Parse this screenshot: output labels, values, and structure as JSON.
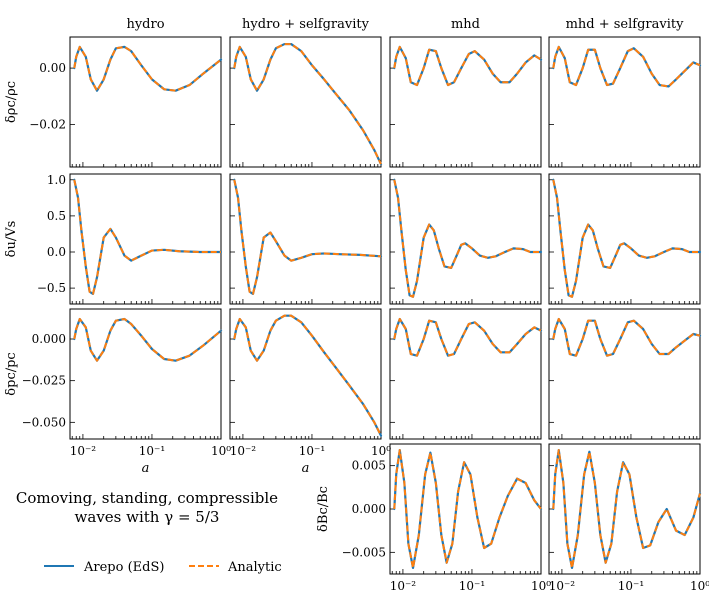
{
  "figure": {
    "note_line1": "Comoving, standing, compressible",
    "note_line2": "waves with γ = 5/3",
    "legend": [
      {
        "label": "Arepo (EdS)",
        "color": "#1f77b4",
        "style": "solid"
      },
      {
        "label": "Analytic",
        "color": "#ff7f0e",
        "style": "dashed"
      }
    ]
  },
  "chart_data": {
    "type": "line",
    "x_scale": "log",
    "xlim": [
      0.0065,
      1.0
    ],
    "xlabel": "a",
    "x_ticks": [
      {
        "v": 0.01,
        "label": "10⁻²"
      },
      {
        "v": 0.1,
        "label": "10⁻¹"
      },
      {
        "v": 1.0,
        "label": "10⁰"
      }
    ],
    "columns": [
      "hydro",
      "hydro + selfgravity",
      "mhd",
      "mhd + selfgravity"
    ],
    "rows": [
      {
        "ylabel": "δρc/ρc",
        "ylim": [
          -0.035,
          0.011
        ],
        "yticks": [
          {
            "v": 0.0,
            "label": "0.00"
          },
          {
            "v": -0.02,
            "label": "−0.02"
          }
        ],
        "series": [
          {
            "x": [
              0.0075,
              0.008,
              0.009,
              0.011,
              0.013,
              0.016,
              0.02,
              0.025,
              0.03,
              0.04,
              0.05,
              0.07,
              0.1,
              0.15,
              0.22,
              0.35,
              0.55,
              1.0
            ],
            "y": [
              0.0,
              0.004,
              0.0075,
              0.004,
              -0.004,
              -0.008,
              -0.004,
              0.003,
              0.007,
              0.0075,
              0.006,
              0.001,
              -0.004,
              -0.0075,
              -0.008,
              -0.006,
              -0.002,
              0.003
            ]
          },
          {
            "x": [
              0.0075,
              0.008,
              0.009,
              0.011,
              0.013,
              0.016,
              0.02,
              0.025,
              0.03,
              0.04,
              0.05,
              0.07,
              0.1,
              0.15,
              0.22,
              0.35,
              0.55,
              0.8,
              1.0
            ],
            "y": [
              0.0,
              0.004,
              0.0075,
              0.004,
              -0.004,
              -0.008,
              -0.004,
              0.003,
              0.007,
              0.0085,
              0.0085,
              0.006,
              0.001,
              -0.004,
              -0.009,
              -0.015,
              -0.022,
              -0.029,
              -0.034
            ]
          },
          {
            "x": [
              0.0075,
              0.008,
              0.009,
              0.011,
              0.013,
              0.016,
              0.02,
              0.024,
              0.03,
              0.036,
              0.045,
              0.055,
              0.07,
              0.09,
              0.11,
              0.15,
              0.2,
              0.26,
              0.35,
              0.45,
              0.6,
              0.8,
              1.0
            ],
            "y": [
              0.0,
              0.004,
              0.0075,
              0.0035,
              -0.005,
              -0.006,
              0.0,
              0.0065,
              0.006,
              0.0,
              -0.006,
              -0.005,
              0.0,
              0.005,
              0.006,
              0.003,
              -0.002,
              -0.005,
              -0.005,
              -0.002,
              0.002,
              0.0045,
              0.003
            ]
          },
          {
            "x": [
              0.0075,
              0.008,
              0.009,
              0.011,
              0.013,
              0.016,
              0.02,
              0.024,
              0.03,
              0.036,
              0.045,
              0.055,
              0.07,
              0.09,
              0.11,
              0.15,
              0.2,
              0.26,
              0.35,
              0.45,
              0.6,
              0.8,
              1.0
            ],
            "y": [
              0.0,
              0.004,
              0.0075,
              0.0035,
              -0.005,
              -0.006,
              0.0,
              0.0065,
              0.0065,
              0.0,
              -0.006,
              -0.0055,
              0.0,
              0.006,
              0.007,
              0.004,
              -0.002,
              -0.006,
              -0.0065,
              -0.004,
              -0.001,
              0.002,
              0.001
            ]
          }
        ]
      },
      {
        "ylabel": "δu/Vs",
        "ylim": [
          -0.72,
          1.08
        ],
        "yticks": [
          {
            "v": 1.0,
            "label": "1.0"
          },
          {
            "v": 0.5,
            "label": "0.5"
          },
          {
            "v": 0.0,
            "label": "0.0"
          },
          {
            "v": -0.5,
            "label": "−0.5"
          }
        ],
        "series": [
          {
            "x": [
              0.0075,
              0.0085,
              0.0095,
              0.011,
              0.0125,
              0.014,
              0.016,
              0.02,
              0.025,
              0.03,
              0.04,
              0.05,
              0.07,
              0.1,
              0.15,
              0.25,
              0.5,
              1.0
            ],
            "y": [
              1.0,
              0.75,
              0.3,
              -0.2,
              -0.55,
              -0.58,
              -0.35,
              0.2,
              0.32,
              0.2,
              -0.05,
              -0.12,
              -0.05,
              0.02,
              0.03,
              0.01,
              0.0,
              0.0
            ]
          },
          {
            "x": [
              0.0075,
              0.0085,
              0.0095,
              0.011,
              0.0125,
              0.014,
              0.016,
              0.02,
              0.025,
              0.03,
              0.04,
              0.05,
              0.07,
              0.1,
              0.15,
              0.25,
              0.5,
              1.0
            ],
            "y": [
              1.0,
              0.75,
              0.3,
              -0.2,
              -0.55,
              -0.58,
              -0.35,
              0.2,
              0.27,
              0.15,
              -0.05,
              -0.12,
              -0.08,
              -0.03,
              -0.02,
              -0.03,
              -0.04,
              -0.06
            ]
          },
          {
            "x": [
              0.0075,
              0.0085,
              0.0095,
              0.011,
              0.0125,
              0.014,
              0.016,
              0.02,
              0.024,
              0.028,
              0.033,
              0.04,
              0.05,
              0.06,
              0.07,
              0.08,
              0.1,
              0.13,
              0.17,
              0.22,
              0.3,
              0.4,
              0.55,
              0.7,
              1.0
            ],
            "y": [
              1.0,
              0.75,
              0.3,
              -0.25,
              -0.6,
              -0.62,
              -0.4,
              0.2,
              0.38,
              0.3,
              0.05,
              -0.2,
              -0.22,
              -0.05,
              0.1,
              0.12,
              0.05,
              -0.05,
              -0.08,
              -0.06,
              0.0,
              0.05,
              0.04,
              0.0,
              0.0
            ]
          },
          {
            "x": [
              0.0075,
              0.0085,
              0.0095,
              0.011,
              0.0125,
              0.014,
              0.016,
              0.02,
              0.024,
              0.028,
              0.033,
              0.04,
              0.05,
              0.06,
              0.07,
              0.08,
              0.1,
              0.13,
              0.17,
              0.22,
              0.3,
              0.4,
              0.55,
              0.7,
              1.0
            ],
            "y": [
              1.0,
              0.75,
              0.3,
              -0.25,
              -0.6,
              -0.62,
              -0.4,
              0.2,
              0.38,
              0.3,
              0.05,
              -0.2,
              -0.22,
              -0.05,
              0.1,
              0.12,
              0.05,
              -0.05,
              -0.08,
              -0.06,
              0.0,
              0.05,
              0.04,
              0.0,
              0.0
            ]
          }
        ]
      },
      {
        "ylabel": "δpc/pc",
        "ylim": [
          -0.06,
          0.018
        ],
        "yticks": [
          {
            "v": 0.0,
            "label": "0.000"
          },
          {
            "v": -0.025,
            "label": "−0.025"
          },
          {
            "v": -0.05,
            "label": "−0.050"
          }
        ],
        "series": [
          {
            "x": [
              0.0075,
              0.008,
              0.009,
              0.011,
              0.013,
              0.016,
              0.02,
              0.025,
              0.03,
              0.04,
              0.05,
              0.07,
              0.1,
              0.15,
              0.22,
              0.35,
              0.55,
              1.0
            ],
            "y": [
              0.0,
              0.006,
              0.012,
              0.007,
              -0.007,
              -0.013,
              -0.007,
              0.005,
              0.011,
              0.012,
              0.009,
              0.002,
              -0.006,
              -0.012,
              -0.013,
              -0.01,
              -0.004,
              0.005
            ]
          },
          {
            "x": [
              0.0075,
              0.008,
              0.009,
              0.011,
              0.013,
              0.016,
              0.02,
              0.025,
              0.03,
              0.04,
              0.05,
              0.07,
              0.1,
              0.15,
              0.22,
              0.35,
              0.55,
              0.8,
              1.0
            ],
            "y": [
              0.0,
              0.006,
              0.012,
              0.007,
              -0.007,
              -0.013,
              -0.007,
              0.005,
              0.011,
              0.014,
              0.014,
              0.01,
              0.002,
              -0.008,
              -0.017,
              -0.028,
              -0.039,
              -0.05,
              -0.058
            ]
          },
          {
            "x": [
              0.0075,
              0.008,
              0.009,
              0.011,
              0.013,
              0.016,
              0.02,
              0.024,
              0.03,
              0.036,
              0.045,
              0.055,
              0.07,
              0.09,
              0.11,
              0.15,
              0.2,
              0.26,
              0.35,
              0.45,
              0.6,
              0.8,
              1.0
            ],
            "y": [
              0.0,
              0.006,
              0.012,
              0.006,
              -0.009,
              -0.01,
              0.0,
              0.011,
              0.01,
              0.0,
              -0.01,
              -0.009,
              0.0,
              0.009,
              0.01,
              0.005,
              -0.003,
              -0.008,
              -0.008,
              -0.003,
              0.003,
              0.007,
              0.005
            ]
          },
          {
            "x": [
              0.0075,
              0.008,
              0.009,
              0.011,
              0.013,
              0.016,
              0.02,
              0.024,
              0.03,
              0.036,
              0.045,
              0.055,
              0.07,
              0.09,
              0.11,
              0.15,
              0.2,
              0.26,
              0.35,
              0.45,
              0.6,
              0.8,
              1.0
            ],
            "y": [
              0.0,
              0.006,
              0.012,
              0.006,
              -0.009,
              -0.01,
              0.0,
              0.011,
              0.011,
              0.0,
              -0.01,
              -0.009,
              0.0,
              0.01,
              0.011,
              0.006,
              -0.003,
              -0.009,
              -0.009,
              -0.005,
              -0.001,
              0.003,
              0.002
            ]
          }
        ]
      },
      {
        "ylabel": "δBc/Bc",
        "ylim": [
          -0.0075,
          0.0075
        ],
        "yticks": [
          {
            "v": 0.005,
            "label": "0.005"
          },
          {
            "v": 0.0,
            "label": "0.000"
          },
          {
            "v": -0.005,
            "label": "−0.005"
          }
        ],
        "series": [
          null,
          null,
          {
            "x": [
              0.0075,
              0.008,
              0.009,
              0.0105,
              0.012,
              0.014,
              0.017,
              0.021,
              0.025,
              0.03,
              0.036,
              0.043,
              0.052,
              0.063,
              0.077,
              0.095,
              0.12,
              0.15,
              0.19,
              0.25,
              0.33,
              0.45,
              0.6,
              0.8,
              1.0
            ],
            "y": [
              0.0,
              0.004,
              0.0068,
              0.003,
              -0.004,
              -0.0068,
              -0.003,
              0.004,
              0.0065,
              0.003,
              -0.003,
              -0.0062,
              -0.004,
              0.002,
              0.0054,
              0.004,
              -0.001,
              -0.0045,
              -0.004,
              -0.001,
              0.0015,
              0.0035,
              0.003,
              0.001,
              0.0
            ]
          },
          {
            "x": [
              0.0075,
              0.008,
              0.009,
              0.0105,
              0.012,
              0.014,
              0.017,
              0.021,
              0.025,
              0.03,
              0.036,
              0.043,
              0.052,
              0.063,
              0.077,
              0.095,
              0.12,
              0.15,
              0.19,
              0.25,
              0.33,
              0.45,
              0.6,
              0.8,
              1.0
            ],
            "y": [
              0.0,
              0.004,
              0.0068,
              0.003,
              -0.004,
              -0.0068,
              -0.003,
              0.004,
              0.0066,
              0.003,
              -0.003,
              -0.0062,
              -0.004,
              0.002,
              0.0054,
              0.004,
              -0.001,
              -0.0045,
              -0.0042,
              -0.0015,
              0.0,
              -0.0025,
              -0.003,
              -0.001,
              0.0018
            ]
          }
        ]
      }
    ]
  }
}
